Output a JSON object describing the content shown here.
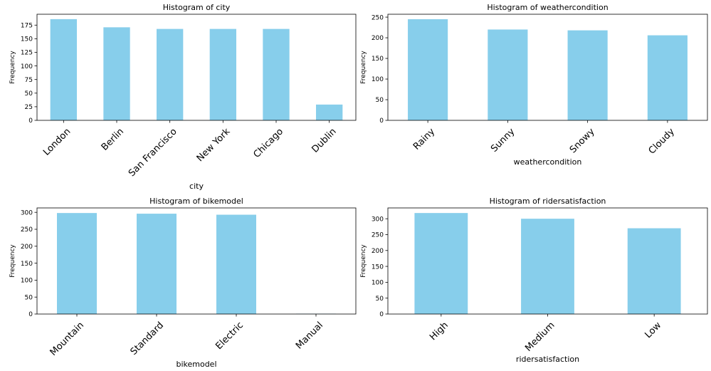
{
  "chart_data": [
    {
      "type": "bar",
      "title": "Histogram of city",
      "xlabel": "city",
      "ylabel": "Frequency",
      "categories": [
        "London",
        "Berlin",
        "San Francisco",
        "New York",
        "Chicago",
        "Dublin"
      ],
      "values": [
        186,
        171,
        168,
        168,
        168,
        29
      ],
      "ylim": [
        0,
        195
      ],
      "yticks": [
        0,
        25,
        50,
        75,
        100,
        125,
        150,
        175
      ],
      "bar_color": "#87ceeb"
    },
    {
      "type": "bar",
      "title": "Histogram of weathercondition",
      "xlabel": "weathercondition",
      "ylabel": "Frequency",
      "categories": [
        "Rainy",
        "Sunny",
        "Snowy",
        "Cloudy"
      ],
      "values": [
        245,
        220,
        218,
        206
      ],
      "ylim": [
        0,
        257
      ],
      "yticks": [
        0,
        50,
        100,
        150,
        200,
        250
      ],
      "bar_color": "#87ceeb"
    },
    {
      "type": "bar",
      "title": "Histogram of bikemodel",
      "xlabel": "bikemodel",
      "ylabel": "Frequency",
      "categories": [
        "Mountain",
        "Standard",
        "Electric",
        "Manual"
      ],
      "values": [
        298,
        296,
        293,
        1
      ],
      "ylim": [
        0,
        313
      ],
      "yticks": [
        0,
        50,
        100,
        150,
        200,
        250,
        300
      ],
      "bar_color": "#87ceeb"
    },
    {
      "type": "bar",
      "title": "Histogram of ridersatisfaction",
      "xlabel": "ridersatisfaction",
      "ylabel": "Frequency",
      "categories": [
        "High",
        "Medium",
        "Low"
      ],
      "values": [
        318,
        300,
        270
      ],
      "ylim": [
        0,
        334
      ],
      "yticks": [
        0,
        50,
        100,
        150,
        200,
        250,
        300
      ],
      "bar_color": "#87ceeb"
    }
  ]
}
